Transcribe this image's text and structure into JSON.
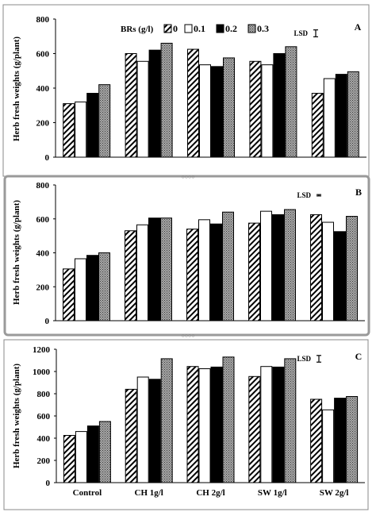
{
  "chart_data": [
    {
      "type": "bar",
      "panel_label": "A",
      "ylabel": "Herb fresh weights (g/plant)",
      "ylim": [
        0,
        800
      ],
      "yticks": [
        "0",
        "200",
        "400",
        "600",
        "800"
      ],
      "categories": [
        "Control",
        "CH 1g/l",
        "CH 2g/l",
        "SW 1g/l",
        "SW 2g/l"
      ],
      "show_category_labels": false,
      "legend_title": "BRs (g/l)",
      "legend_placement": "top-center",
      "lsd_label": "LSD",
      "lsd_value": 40,
      "series": [
        {
          "name": "0",
          "values": [
            310,
            600,
            625,
            555,
            370
          ]
        },
        {
          "name": "0.1",
          "values": [
            320,
            555,
            535,
            535,
            455
          ]
        },
        {
          "name": "0.2",
          "values": [
            370,
            620,
            525,
            600,
            480
          ]
        },
        {
          "name": "0.3",
          "values": [
            420,
            660,
            575,
            640,
            495
          ]
        }
      ]
    },
    {
      "type": "bar",
      "panel_label": "B",
      "ylabel": "Herb fresh weights (g/plant)",
      "ylim": [
        0,
        800
      ],
      "yticks": [
        "0",
        "200",
        "400",
        "600",
        "800"
      ],
      "categories": [
        "Control",
        "CH 1g/l",
        "CH 2g/l",
        "SW 1g/l",
        "SW 2g/l"
      ],
      "show_category_labels": false,
      "lsd_label": "LSD",
      "lsd_value": 8,
      "series": [
        {
          "name": "0",
          "values": [
            305,
            530,
            540,
            575,
            625
          ]
        },
        {
          "name": "0.1",
          "values": [
            365,
            565,
            595,
            645,
            580
          ]
        },
        {
          "name": "0.2",
          "values": [
            385,
            605,
            570,
            625,
            525
          ]
        },
        {
          "name": "0.3",
          "values": [
            400,
            605,
            640,
            655,
            615
          ]
        }
      ]
    },
    {
      "type": "bar",
      "panel_label": "C",
      "ylabel": "Herb fresh weights (g/plant)",
      "ylim": [
        0,
        1200
      ],
      "yticks": [
        "0",
        "200",
        "400",
        "600",
        "800",
        "1000",
        "1200"
      ],
      "categories": [
        "Control",
        "CH 1g/l",
        "CH 2g/l",
        "SW 1g/l",
        "SW 2g/l"
      ],
      "show_category_labels": true,
      "lsd_label": "LSD",
      "lsd_value": 60,
      "series": [
        {
          "name": "0",
          "values": [
            425,
            840,
            1045,
            955,
            750
          ]
        },
        {
          "name": "0.1",
          "values": [
            460,
            950,
            1025,
            1045,
            655
          ]
        },
        {
          "name": "0.2",
          "values": [
            510,
            930,
            1040,
            1040,
            760
          ]
        },
        {
          "name": "0.3",
          "values": [
            550,
            1115,
            1130,
            1115,
            775
          ]
        }
      ]
    }
  ]
}
